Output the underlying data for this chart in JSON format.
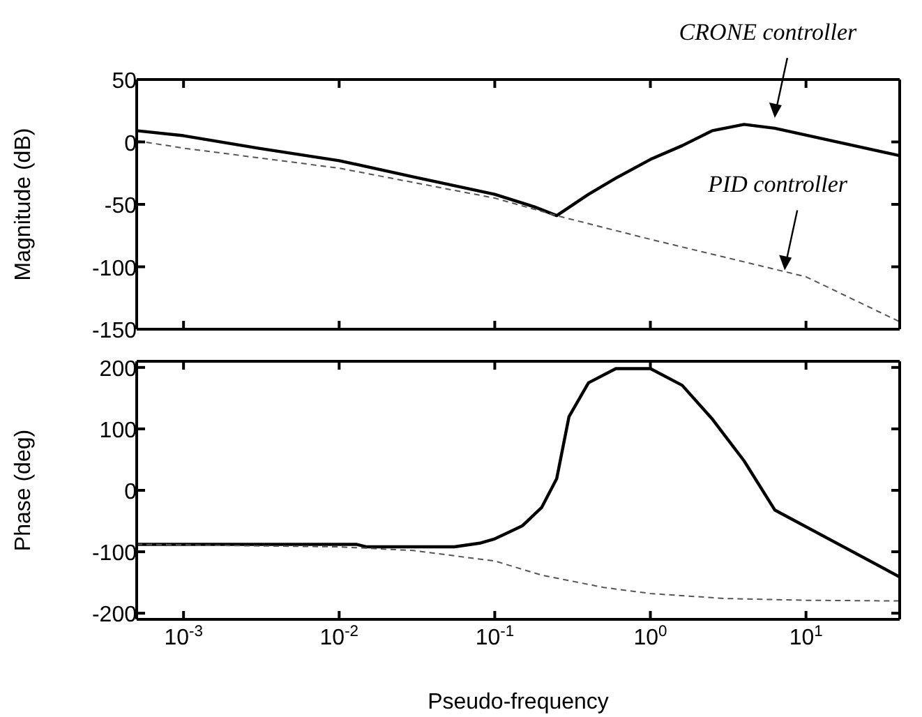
{
  "chart_data": [
    {
      "type": "line",
      "ylabel": "Magnitude (dB)",
      "xlim": [
        0.0005,
        40
      ],
      "xticks": [
        {
          "value": 0.001,
          "label": null
        },
        {
          "value": 0.01,
          "label": null
        },
        {
          "value": 0.1,
          "label": null
        },
        {
          "value": 1,
          "label": null
        },
        {
          "value": 10,
          "label": null
        }
      ],
      "log": "x",
      "ylim": [
        -150,
        50
      ],
      "yticks": [
        -150,
        -100,
        -50,
        0,
        50
      ],
      "tick_labels": "y",
      "legend": false,
      "annotations": [
        {
          "text": "CRONE controller",
          "x": 6.3,
          "y": 17
        },
        {
          "text": "PID controller",
          "x": 7.3,
          "y": -105
        }
      ],
      "series": [
        {
          "color": "#000000",
          "line_style": "solid",
          "x": [
            0.0005,
            0.001,
            0.003,
            0.01,
            0.03,
            0.1,
            0.18,
            0.25,
            0.4,
            0.6,
            1,
            1.6,
            2.5,
            4,
            6.3,
            40
          ],
          "values": [
            9,
            5,
            -5,
            -15,
            -28,
            -42,
            -52,
            -59,
            -42,
            -29,
            -14,
            -3,
            9,
            14,
            11,
            -11
          ]
        },
        {
          "color": "#555555",
          "line_style": "dashed",
          "x": [
            0.0005,
            0.001,
            0.01,
            0.1,
            0.25,
            1,
            10,
            40
          ],
          "values": [
            1,
            -5,
            -21,
            -45,
            -59,
            -78,
            -108,
            -144
          ]
        }
      ]
    },
    {
      "type": "line",
      "xlabel": "Pseudo-frequency",
      "ylabel": "Phase (deg)",
      "xlim": [
        0.0005,
        40
      ],
      "xticks": [
        {
          "value": 0.001,
          "label": "10$^{-3}$"
        },
        {
          "value": 0.01,
          "label": "10$^{-2}$"
        },
        {
          "value": 0.1,
          "label": "10$^{-1}$"
        },
        {
          "value": 1,
          "label": "10$^{0}$"
        },
        {
          "value": 10,
          "label": "10$^{1}$"
        }
      ],
      "log": "x",
      "ylim": [
        -210,
        210
      ],
      "yticks": [
        -200,
        -100,
        0,
        100,
        200
      ],
      "legend": false,
      "series": [
        {
          "color": "#000000",
          "line_style": "solid",
          "x": [
            0.0005,
            0.013,
            0.015,
            0.055,
            0.08,
            0.1,
            0.15,
            0.2,
            0.25,
            0.3,
            0.4,
            0.6,
            1,
            1.6,
            2.5,
            4,
            6.3,
            40
          ],
          "values": [
            -88,
            -88,
            -92,
            -92,
            -86,
            -79,
            -58,
            -28,
            19,
            120,
            175,
            198,
            198,
            171,
            116,
            48,
            -32,
            -141
          ]
        },
        {
          "color": "#555555",
          "line_style": "dashed",
          "x": [
            0.0005,
            0.01,
            0.03,
            0.1,
            0.2,
            0.5,
            1,
            3,
            10,
            40
          ],
          "values": [
            -88,
            -92,
            -98,
            -115,
            -138,
            -158,
            -168,
            -176,
            -179,
            -180
          ]
        }
      ]
    }
  ]
}
